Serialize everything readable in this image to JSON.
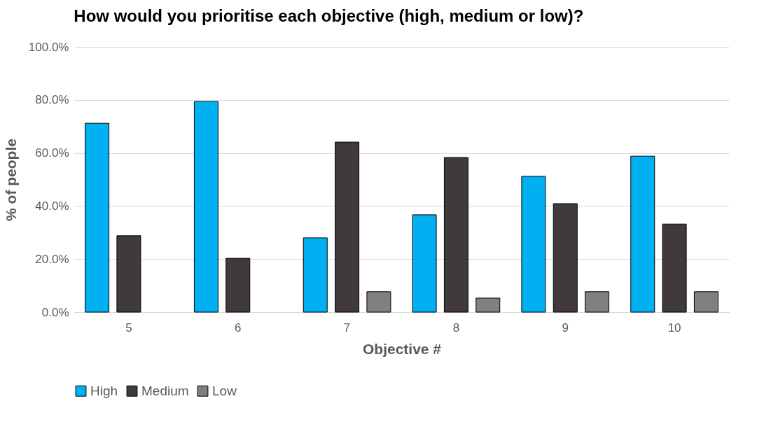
{
  "chart_data": {
    "type": "bar",
    "title": "How would you prioritise each objective (high, medium or low)?",
    "xlabel": "Objective #",
    "ylabel": "% of people",
    "categories": [
      "5",
      "6",
      "7",
      "8",
      "9",
      "10"
    ],
    "series": [
      {
        "name": "High",
        "color": "#00b0f0",
        "values": [
          71.2,
          79.4,
          28.0,
          36.7,
          51.2,
          58.8
        ]
      },
      {
        "name": "Medium",
        "color": "#403a3a",
        "values": [
          28.8,
          20.3,
          64.1,
          58.3,
          40.9,
          33.2
        ]
      },
      {
        "name": "Low",
        "color": "#808080",
        "values": [
          null,
          null,
          7.7,
          5.3,
          7.7,
          7.7
        ]
      }
    ],
    "ylim": [
      0,
      100
    ],
    "yticks": [
      {
        "value": 0,
        "label": "0.0%"
      },
      {
        "value": 20,
        "label": "20.0%"
      },
      {
        "value": 40,
        "label": "40.0%"
      },
      {
        "value": 60,
        "label": "60.0%"
      },
      {
        "value": 80,
        "label": "80.0%"
      },
      {
        "value": 100,
        "label": "100.0%"
      }
    ],
    "grid": "y",
    "legend": "bottom"
  }
}
